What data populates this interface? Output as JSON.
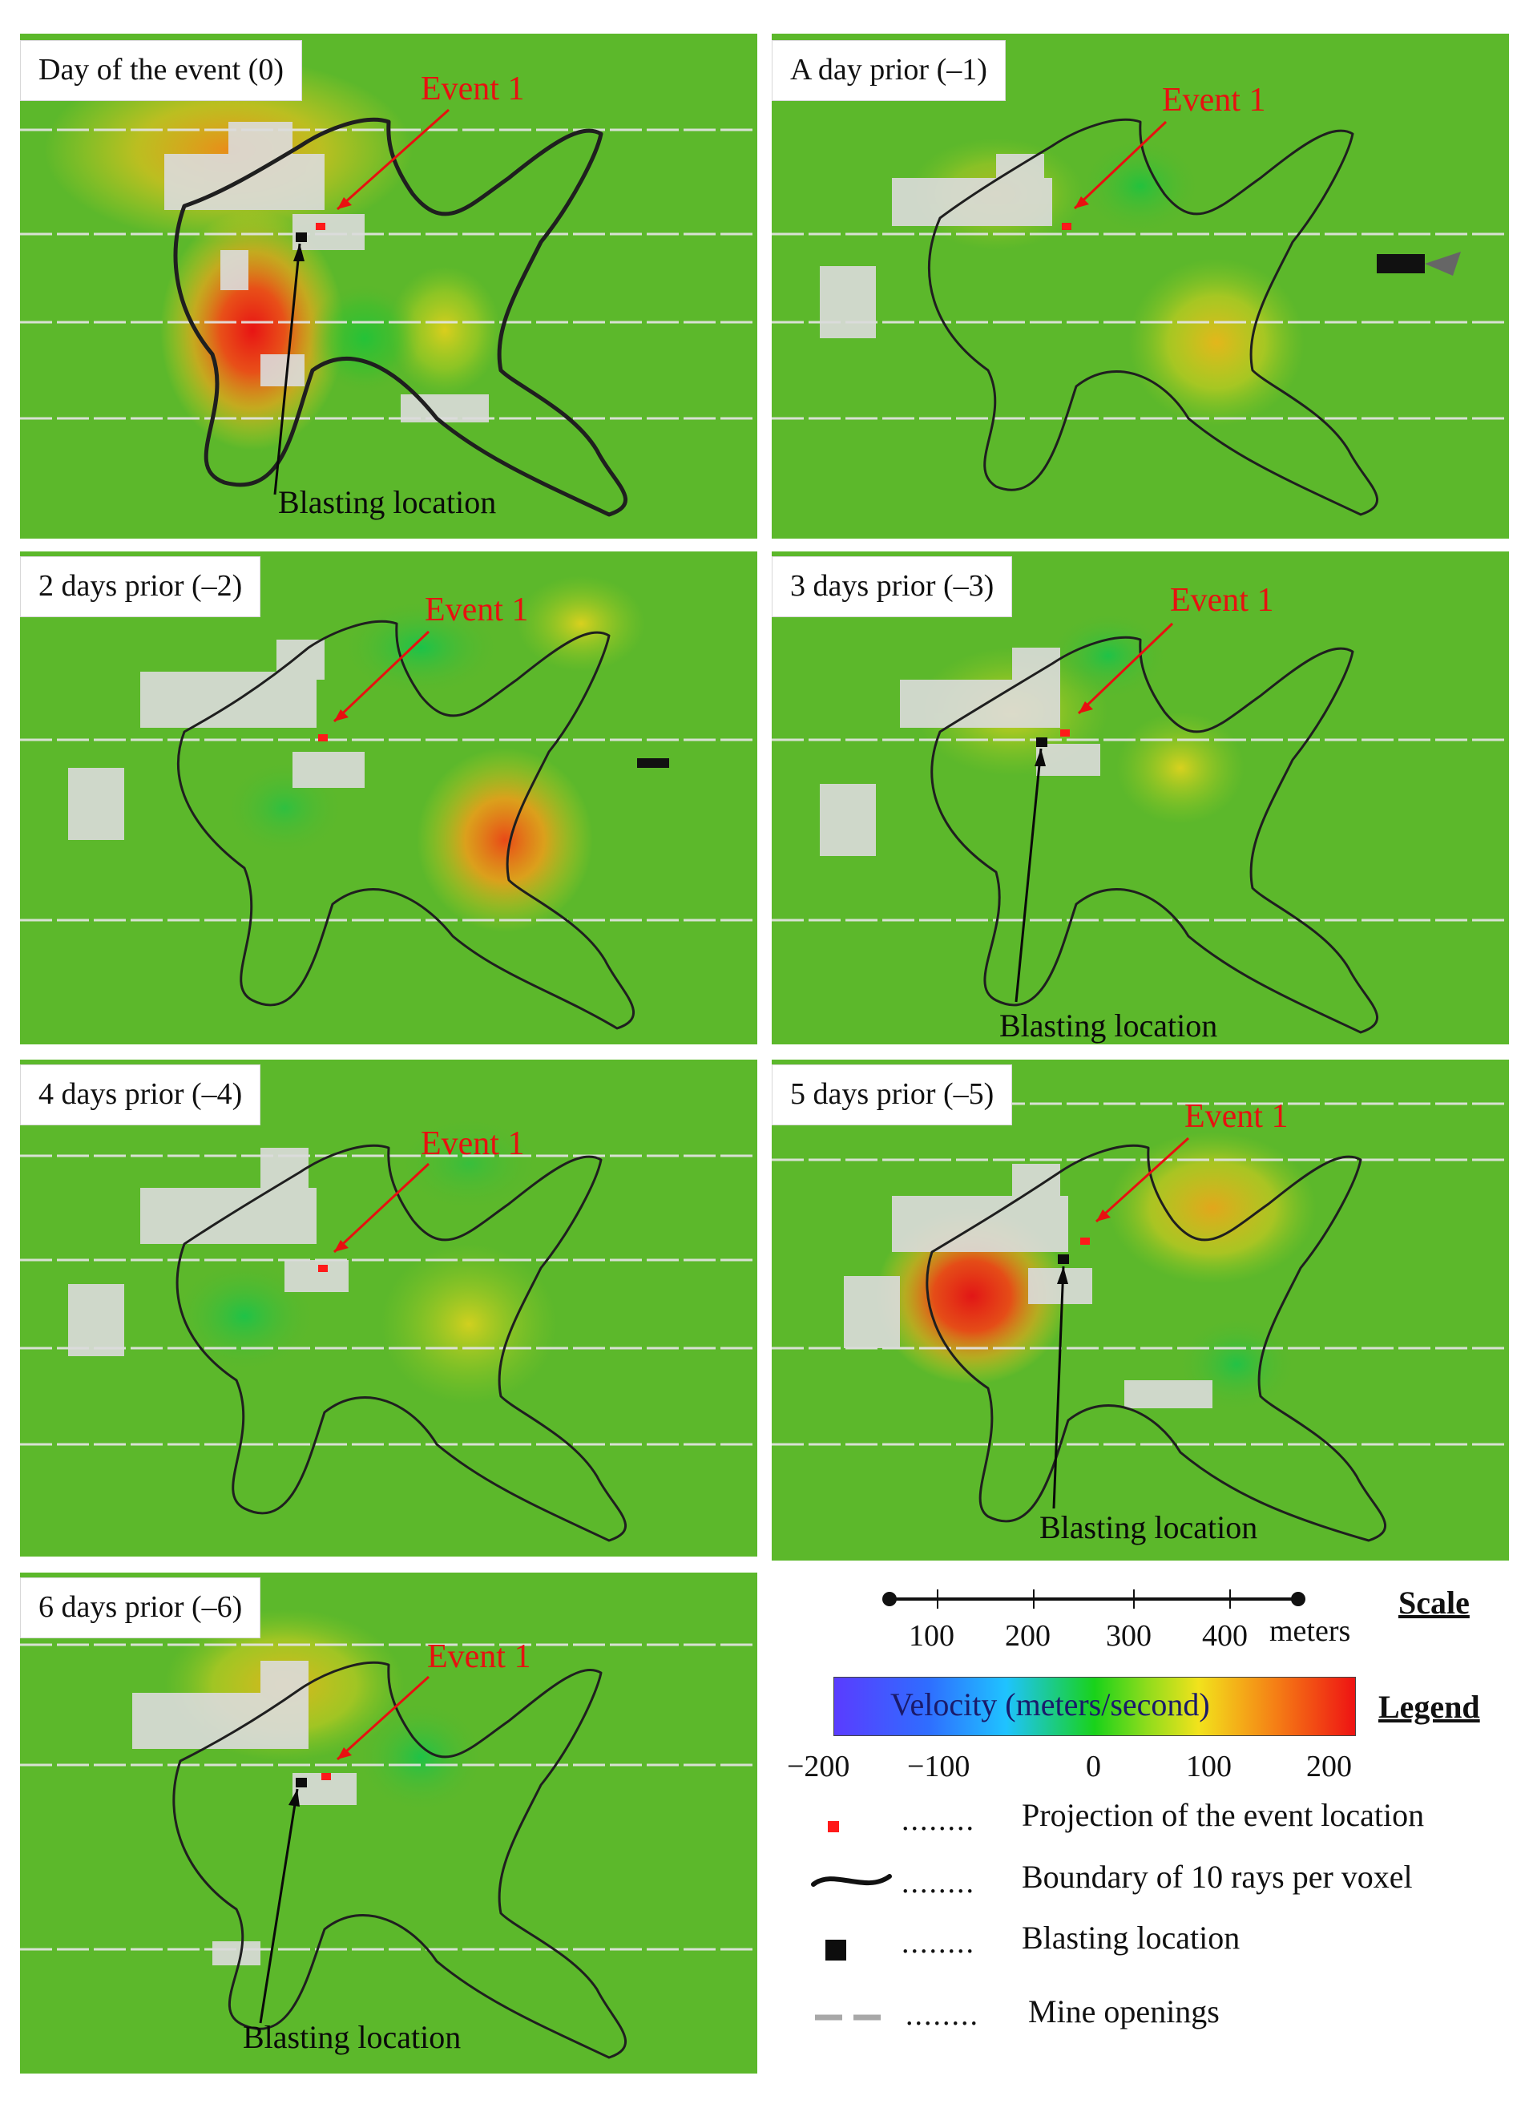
{
  "panels": [
    {
      "title": "Day of the event (0)",
      "event_label": "Event 1",
      "blasting_label": "Blasting location"
    },
    {
      "title": "A day prior (–1)",
      "event_label": "Event 1"
    },
    {
      "title": "2 days prior (–2)",
      "event_label": "Event 1"
    },
    {
      "title": "3 days prior (–3)",
      "event_label": "Event 1",
      "blasting_label": "Blasting location"
    },
    {
      "title": "4 days prior (–4)",
      "event_label": "Event 1"
    },
    {
      "title": "5 days prior (–5)",
      "event_label": "Event 1",
      "blasting_label": "Blasting location"
    },
    {
      "title": "6 days prior (–6)",
      "event_label": "Event 1",
      "blasting_label": "Blasting location"
    }
  ],
  "scale": {
    "title": "Scale",
    "ticks": [
      "100",
      "200",
      "300",
      "400"
    ],
    "unit": "meters"
  },
  "legend": {
    "title": "Legend",
    "colorbar_label": "Velocity (meters/second)",
    "ticks": [
      "−200",
      "−100",
      "0",
      "100",
      "200"
    ],
    "entries": [
      {
        "leader": "........",
        "label": "Projection of the event location"
      },
      {
        "leader": "........",
        "label": "Boundary of 10 rays per voxel"
      },
      {
        "leader": "........",
        "label": "Blasting location"
      },
      {
        "leader": "........",
        "label": "Mine openings"
      }
    ]
  },
  "colors": {
    "background_green": "#5cb82b",
    "event_red": "#e81010",
    "colorbar": [
      "#5a3cff",
      "#2f6dff",
      "#1fc3ff",
      "#19d21a",
      "#8fdc1c",
      "#f2e21c",
      "#f57d15",
      "#ee1313"
    ]
  }
}
